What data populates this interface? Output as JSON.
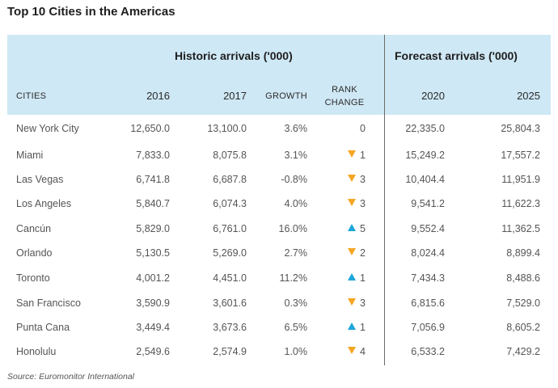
{
  "title": "Top 10 Cities in the Americas",
  "groups": {
    "historic": "Historic arrivals ('000)",
    "forecast": "Forecast arrivals ('000)"
  },
  "columns": {
    "cities": "CITIES",
    "y2016": "2016",
    "y2017": "2017",
    "growth": "GROWTH",
    "rank_line1": "RANK",
    "rank_line2": "CHANGE",
    "y2020": "2020",
    "y2025": "2025"
  },
  "rows": [
    {
      "city": "New York City",
      "y2016": "12,650.0",
      "y2017": "13,100.0",
      "growth": "3.6%",
      "rank_dir": "none",
      "rank": "0",
      "y2020": "22,335.0",
      "y2025": "25,804.3"
    },
    {
      "city": "Miami",
      "y2016": "7,833.0",
      "y2017": "8,075.8",
      "growth": "3.1%",
      "rank_dir": "down",
      "rank": "1",
      "y2020": "15,249.2",
      "y2025": "17,557.2"
    },
    {
      "city": "Las Vegas",
      "y2016": "6,741.8",
      "y2017": "6,687.8",
      "growth": "-0.8%",
      "rank_dir": "down",
      "rank": "3",
      "y2020": "10,404.4",
      "y2025": "11,951.9"
    },
    {
      "city": "Los Angeles",
      "y2016": "5,840.7",
      "y2017": "6,074.3",
      "growth": "4.0%",
      "rank_dir": "down",
      "rank": "3",
      "y2020": "9,541.2",
      "y2025": "11,622.3"
    },
    {
      "city": "Cancún",
      "y2016": "5,829.0",
      "y2017": "6,761.0",
      "growth": "16.0%",
      "rank_dir": "up",
      "rank": "5",
      "y2020": "9,552.4",
      "y2025": "11,362.5"
    },
    {
      "city": "Orlando",
      "y2016": "5,130.5",
      "y2017": "5,269.0",
      "growth": "2.7%",
      "rank_dir": "down",
      "rank": "2",
      "y2020": "8,024.4",
      "y2025": "8,899.4"
    },
    {
      "city": "Toronto",
      "y2016": "4,001.2",
      "y2017": "4,451.0",
      "growth": "11.2%",
      "rank_dir": "up",
      "rank": "1",
      "y2020": "7,434.3",
      "y2025": "8,488.6"
    },
    {
      "city": "San Francisco",
      "y2016": "3,590.9",
      "y2017": "3,601.6",
      "growth": "0.3%",
      "rank_dir": "down",
      "rank": "3",
      "y2020": "6,815.6",
      "y2025": "7,529.0"
    },
    {
      "city": "Punta Cana",
      "y2016": "3,449.4",
      "y2017": "3,673.6",
      "growth": "6.5%",
      "rank_dir": "up",
      "rank": "1",
      "y2020": "7,056.9",
      "y2025": "8,605.2"
    },
    {
      "city": "Honolulu",
      "y2016": "2,549.6",
      "y2017": "2,574.9",
      "growth": "1.0%",
      "rank_dir": "down",
      "rank": "4",
      "y2020": "6,533.2",
      "y2025": "7,429.2"
    }
  ],
  "source": "Source: Euromonitor International",
  "colors": {
    "header_bg": "#cfe8f5",
    "down_arrow": "#f5a623",
    "up_arrow": "#1ca6d9"
  }
}
